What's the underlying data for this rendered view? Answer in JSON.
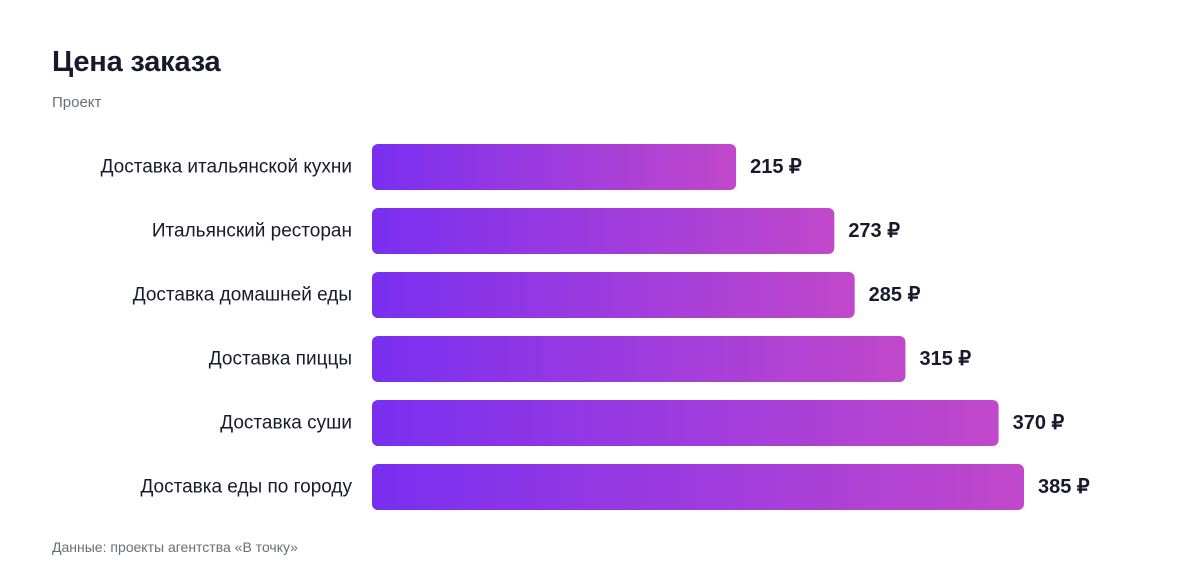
{
  "header": {
    "title": "Цена заказа",
    "subtitle": "Проект"
  },
  "footer": {
    "source": "Данные: проекты агентства «В точку»"
  },
  "colors": {
    "bar_start": "#7a2ff0",
    "bar_end": "#c148cb"
  },
  "chart_data": {
    "type": "bar",
    "orientation": "horizontal",
    "title": "Цена заказа",
    "subtitle": "Проект",
    "categories": [
      "Доставка итальянской кухни",
      "Итальянский ресторан",
      "Доставка домашней еды",
      "Доставка пиццы",
      "Доставка суши",
      "Доставка еды по городу"
    ],
    "values": [
      215,
      273,
      285,
      315,
      370,
      385
    ],
    "value_labels": [
      "215 ₽",
      "273 ₽",
      "285 ₽",
      "315 ₽",
      "370 ₽",
      "385 ₽"
    ],
    "unit": "₽",
    "xlim": [
      0,
      385
    ],
    "grid": false,
    "legend": "none"
  }
}
